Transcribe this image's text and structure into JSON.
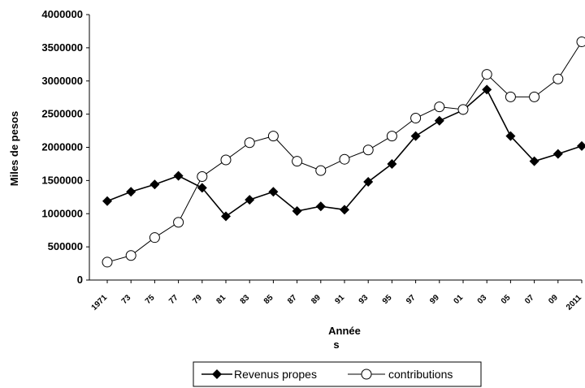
{
  "chart_data": {
    "type": "line",
    "title": "",
    "ylabel": "Miles de pesos",
    "xlabel_line1": "Année",
    "xlabel_line2": "s",
    "ylim": [
      0,
      4000000
    ],
    "yticks": [
      "0",
      "500000",
      "1000000",
      "1500000",
      "2000000",
      "2500000",
      "3000000",
      "3500000",
      "4000000"
    ],
    "categories": [
      "1971",
      "73",
      "75",
      "77",
      "79",
      "81",
      "83",
      "85",
      "87",
      "89",
      "91",
      "93",
      "95",
      "97",
      "99",
      "01",
      "03",
      "05",
      "07",
      "09",
      "2011"
    ],
    "series": [
      {
        "name": "Revenus propes",
        "color": "#000000",
        "marker": "diamond",
        "values": [
          1190000,
          1330000,
          1440000,
          1570000,
          1390000,
          960000,
          1210000,
          1330000,
          1040000,
          1110000,
          1060000,
          1480000,
          1750000,
          2170000,
          2400000,
          2560000,
          2870000,
          2170000,
          1790000,
          1900000,
          2020000
        ]
      },
      {
        "name": "contributions",
        "color": "#000000",
        "marker": "circle-open",
        "values": [
          270000,
          370000,
          640000,
          870000,
          1560000,
          1810000,
          2070000,
          2170000,
          1790000,
          1650000,
          1820000,
          1960000,
          2170000,
          2440000,
          2610000,
          2570000,
          3100000,
          2760000,
          2760000,
          3030000,
          3590000
        ]
      }
    ],
    "legend": {
      "position": "bottom"
    },
    "grid": false
  }
}
